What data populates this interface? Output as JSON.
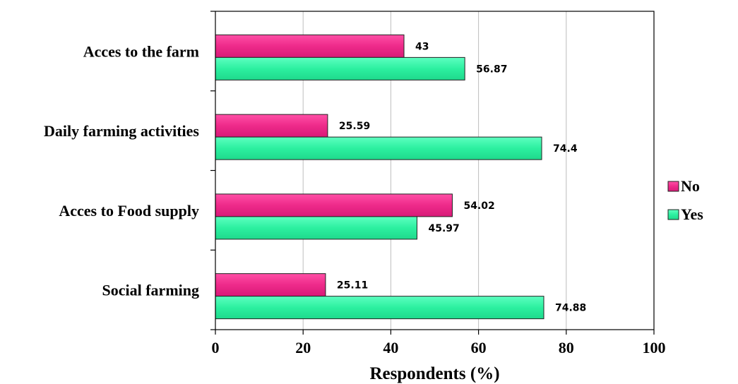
{
  "chart_data": {
    "type": "bar",
    "orientation": "horizontal",
    "categories": [
      "Acces to the farm",
      "Daily farming activities",
      "Acces to Food supply",
      "Social farming"
    ],
    "series": [
      {
        "name": "No",
        "values": [
          43,
          25.59,
          54.02,
          25.11
        ],
        "color": "#ee2a8a"
      },
      {
        "name": "Yes",
        "values": [
          56.87,
          74.4,
          45.97,
          74.88
        ],
        "color": "#2cf0a0"
      }
    ],
    "data_labels": {
      "No": [
        "43",
        "25.59",
        "54.02",
        "25.11"
      ],
      "Yes": [
        "56.87",
        "74.4",
        "45.97",
        "74.88"
      ]
    },
    "xlabel": "Respondents (%)",
    "ylabel": "",
    "xlim": [
      0,
      100
    ],
    "xticks": [
      "0",
      "20",
      "40",
      "60",
      "80",
      "100"
    ],
    "grid": "vertical",
    "legend_position": "right"
  }
}
